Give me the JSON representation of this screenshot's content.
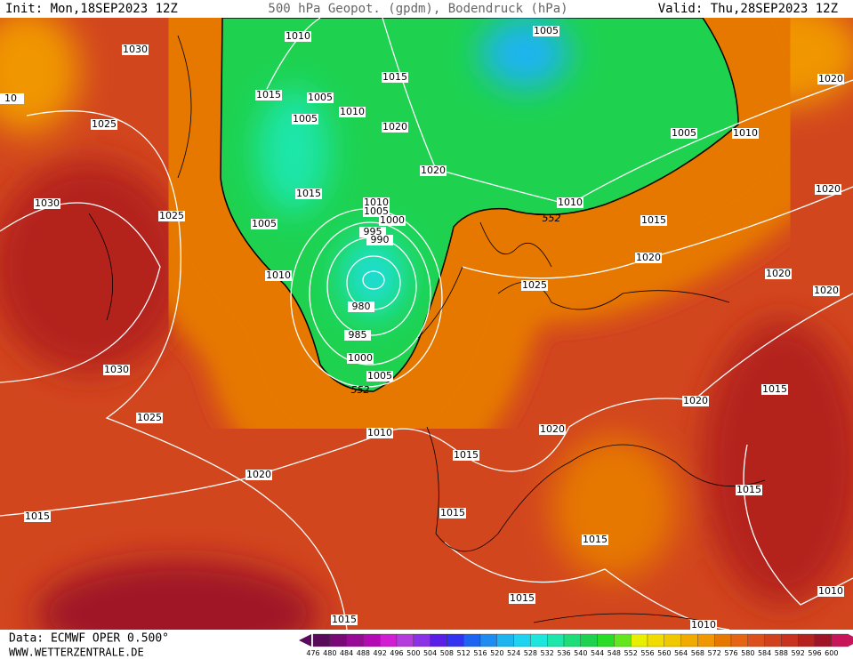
{
  "header": {
    "init": "Init: Mon,18SEP2023 12Z",
    "title": "500 hPa Geopot. (gpdm), Bodendruck (hPa)",
    "valid": "Valid: Thu,28SEP2023 12Z"
  },
  "map": {
    "isobar_labels": [
      "1010",
      "1005",
      "1030",
      "10",
      "1015",
      "1005",
      "1015",
      "1020",
      "1025",
      "1005",
      "1010",
      "1020",
      "1005",
      "1010",
      "1020",
      "1015",
      "1020",
      "1030",
      "1025",
      "1010",
      "1005",
      "1000",
      "1005",
      "995",
      "990",
      "1010",
      "1015",
      "552",
      "1020",
      "1010",
      "1025",
      "1020",
      "1020",
      "980",
      "985",
      "1000",
      "1030",
      "1005",
      "552",
      "1015",
      "1020",
      "1025",
      "1010",
      "1020",
      "1015",
      "1020",
      "1015",
      "1015",
      "1015",
      "1015",
      "1015",
      "1010",
      "1015",
      "1010"
    ]
  },
  "colorbar": {
    "levels": [
      476,
      480,
      484,
      488,
      492,
      496,
      500,
      504,
      508,
      512,
      516,
      520,
      524,
      528,
      532,
      536,
      540,
      544,
      548,
      552,
      556,
      560,
      564,
      568,
      572,
      576,
      580,
      584,
      588,
      592,
      596,
      600
    ],
    "colors": [
      "#5a0a5a",
      "#780a78",
      "#960a96",
      "#b40ab4",
      "#d21ed2",
      "#b43cdc",
      "#8c32e6",
      "#5a1ee6",
      "#3232f0",
      "#1e64f0",
      "#1e8cf0",
      "#1eb4f0",
      "#1ed2f0",
      "#1ee6dc",
      "#1ee6aa",
      "#1edc78",
      "#1ed250",
      "#28dc28",
      "#64e61e",
      "#e6f000",
      "#f0dc00",
      "#f0c800",
      "#f0aa00",
      "#f09600",
      "#e67800",
      "#e66414",
      "#dc501e",
      "#d2411e",
      "#c8321e",
      "#b4231e",
      "#a01428",
      "#c8145a"
    ]
  },
  "footer": {
    "data": "Data: ECMWF OPER 0.500°",
    "site": "WWW.WETTERZENTRALE.DE"
  }
}
